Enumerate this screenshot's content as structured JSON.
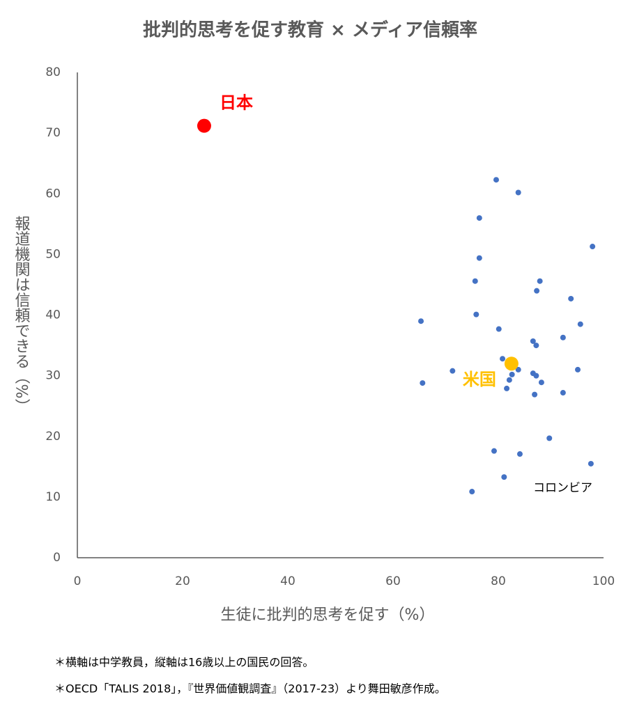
{
  "chart_data": {
    "type": "scatter",
    "title": "批判的思考を促す教育 × メディア信頼率",
    "x_label": "生徒に批判的思考を促す（%）",
    "y_label": "報道機関は信頼できる（%）",
    "xlim": [
      0,
      100
    ],
    "xticks": [
      0,
      20,
      40,
      60,
      80,
      100
    ],
    "ylim": [
      0,
      80
    ],
    "yticks": [
      0,
      10,
      20,
      30,
      40,
      50,
      60,
      70,
      80
    ],
    "grid": false,
    "series": [
      {
        "color": "#4472c4",
        "size": "small",
        "x": [
          79.6,
          83.8,
          76.4,
          97.9,
          76.4,
          75.6,
          87.9,
          87.3,
          93.8,
          75.8,
          65.3,
          95.6,
          80.1,
          92.3,
          86.6,
          87.2,
          80.8,
          71.3,
          83.8,
          95.1,
          86.6,
          87.2,
          82.6,
          82.1,
          65.6,
          88.2,
          81.6,
          92.3,
          86.9,
          89.7,
          79.2,
          84.1,
          97.6,
          81.1,
          75.0
        ],
        "values": [
          62.3,
          60.2,
          56.0,
          51.3,
          49.4,
          45.6,
          45.6,
          44.0,
          42.7,
          40.1,
          39.0,
          38.5,
          37.7,
          36.3,
          35.7,
          35.0,
          32.8,
          30.8,
          31.0,
          31.0,
          30.4,
          30.0,
          30.2,
          29.3,
          28.8,
          28.9,
          27.9,
          27.2,
          26.9,
          19.7,
          17.6,
          17.1,
          15.5,
          13.3,
          10.9
        ]
      },
      {
        "name": "日本",
        "color": "#ff0000",
        "size": "large",
        "x": [
          24.1
        ],
        "values": [
          71.2
        ]
      },
      {
        "name": "米国",
        "color": "#ffc000",
        "size": "large",
        "x": [
          82.5
        ],
        "values": [
          32.0
        ]
      }
    ],
    "annotations": [
      {
        "text": "コロンビア"
      }
    ],
    "notes": [
      "＊横軸は中学教員，縦軸は16歳以上の国民の回答。",
      "＊OECD「TALIS 2018」，『世界価値観調査』（2017-23）より舞田敏彦作成。"
    ]
  }
}
